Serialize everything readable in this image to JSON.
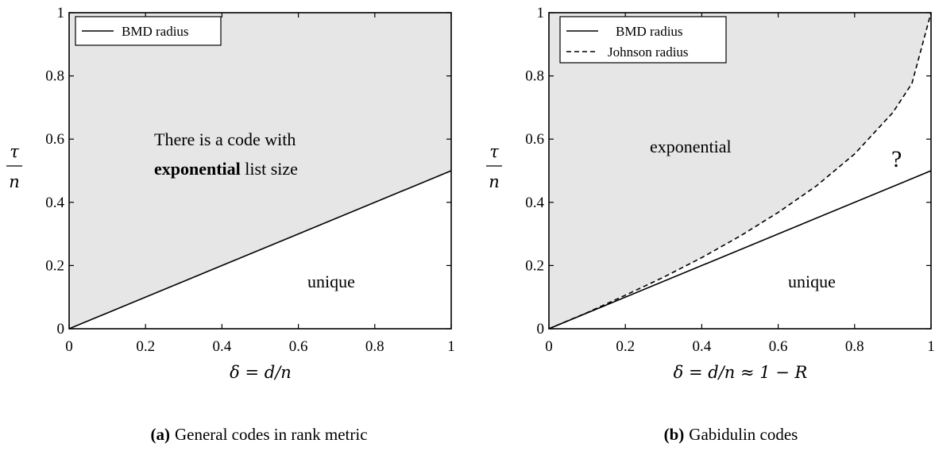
{
  "chart_data": [
    {
      "type": "area",
      "caption_label": "(a)",
      "caption_text": "General codes in rank metric",
      "xlabel": "δ = d/n",
      "ylabel_num": "τ",
      "ylabel_den": "n",
      "xlim": [
        0,
        1
      ],
      "ylim": [
        0,
        1
      ],
      "xticks": [
        "0",
        "0.2",
        "0.4",
        "0.6",
        "0.8",
        "1"
      ],
      "yticks": [
        "0",
        "0.2",
        "0.4",
        "0.6",
        "0.8",
        "1"
      ],
      "legend": {
        "position": "top-left",
        "entries": [
          {
            "label": "BMD radius",
            "style": "solid"
          }
        ]
      },
      "series": [
        {
          "name": "BMD radius",
          "style": "solid",
          "x": [
            0,
            1
          ],
          "y": [
            0,
            0.5
          ]
        }
      ],
      "regions": [
        {
          "label": "exponential",
          "fill": "#e6e6e6",
          "bounded_below_by": "BMD radius"
        },
        {
          "label": "unique",
          "fill": "#ffffff",
          "bounded_above_by": "BMD radius"
        }
      ],
      "annotations": {
        "line1": "There is a code with",
        "bold_word": "exponential",
        "line2_rest": " list size",
        "unique": "unique"
      }
    },
    {
      "type": "area",
      "caption_label": "(b)",
      "caption_text": "Gabidulin codes",
      "xlabel": "δ = d/n ≈ 1 − R",
      "ylabel_num": "τ",
      "ylabel_den": "n",
      "xlim": [
        0,
        1
      ],
      "ylim": [
        0,
        1
      ],
      "xticks": [
        "0",
        "0.2",
        "0.4",
        "0.6",
        "0.8",
        "1"
      ],
      "yticks": [
        "0",
        "0.2",
        "0.4",
        "0.6",
        "0.8",
        "1"
      ],
      "legend": {
        "position": "top-left",
        "entries": [
          {
            "label": "BMD radius",
            "style": "solid"
          },
          {
            "label": "Johnson radius",
            "style": "dashed"
          }
        ]
      },
      "series": [
        {
          "name": "BMD radius",
          "style": "solid",
          "x": [
            0,
            1
          ],
          "y": [
            0,
            0.5
          ]
        },
        {
          "name": "Johnson radius",
          "style": "dashed",
          "x": [
            0,
            0.1,
            0.2,
            0.3,
            0.4,
            0.5,
            0.6,
            0.7,
            0.8,
            0.9,
            0.95,
            1
          ],
          "y": [
            0,
            0.051,
            0.106,
            0.163,
            0.225,
            0.293,
            0.368,
            0.452,
            0.553,
            0.684,
            0.776,
            1
          ]
        }
      ],
      "regions": [
        {
          "label": "exponential",
          "fill": "#e6e6e6",
          "bounded_below_by": "Johnson radius"
        },
        {
          "label": "?",
          "fill": "#ffffff",
          "between": [
            "BMD radius",
            "Johnson radius"
          ]
        },
        {
          "label": "unique",
          "fill": "#ffffff",
          "bounded_above_by": "BMD radius"
        }
      ],
      "annotations": {
        "exponential": "exponential",
        "question": "?",
        "unique": "unique"
      }
    }
  ]
}
